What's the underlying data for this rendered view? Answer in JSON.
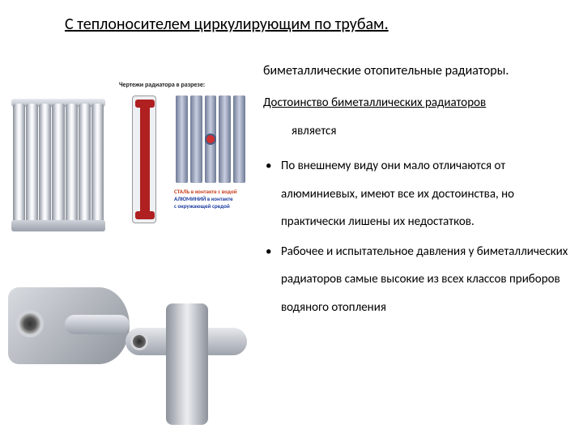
{
  "title": "С теплоносителем циркулирующим по трубам.",
  "subtitle": "биметаллические отопительные радиаторы.",
  "advantage_label": "Достоинство биметаллических радиаторов",
  "is_text": "является",
  "bullets": [
    "По внешнему виду они мало отличаются от алюминиевых, имеют все их достоинства, но практически лишены их недостатков.",
    "Рабочее и испытательное давления у биметаллических радиаторов самые высокие из всех классов приборов водяного отопления"
  ],
  "diagram": {
    "caption": "Чертежи радиатора в разрезе:",
    "legend_steel": "СТАЛЬ в контакте с водой",
    "legend_alu_1": "АЛЮМИНИЙ в контакте",
    "legend_alu_2": "с окружающей средой"
  },
  "colors": {
    "steel": "#c84020",
    "aluminum": "#2040a0",
    "core": "#b02020",
    "metal_light": "#e6e9ee",
    "metal_dark": "#8a8f99"
  }
}
